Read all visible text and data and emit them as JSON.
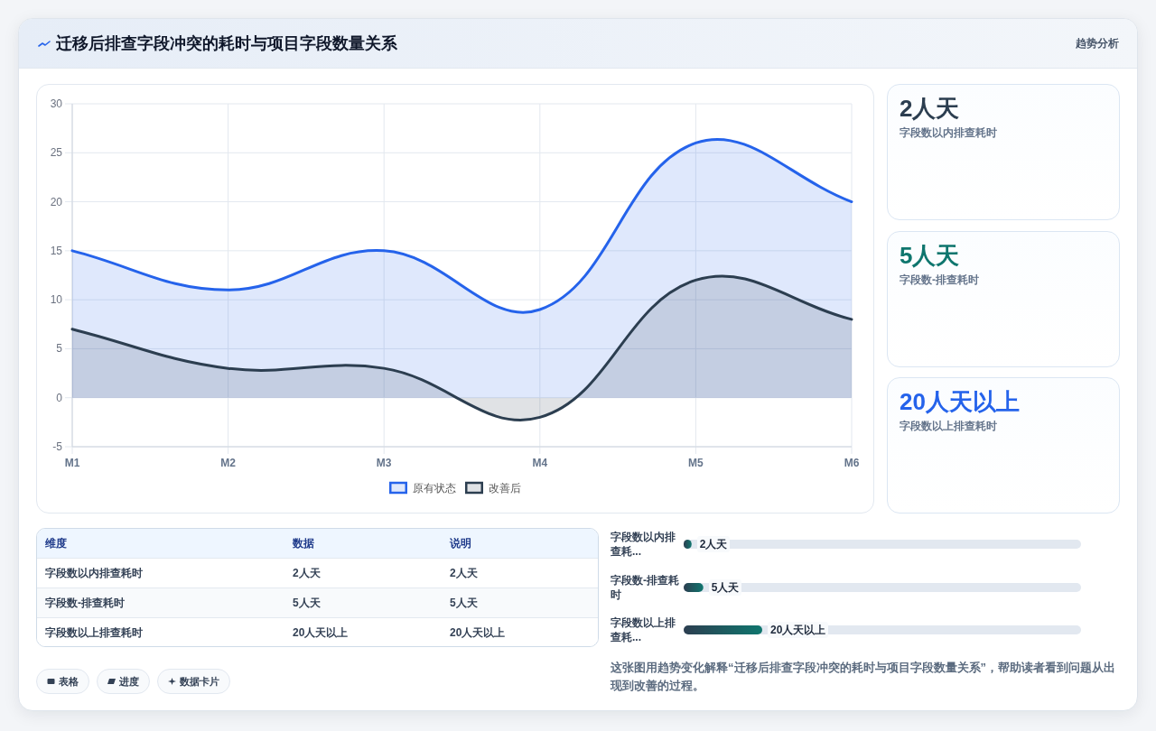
{
  "chart_data": [
    {
      "type": "area",
      "title": "迁移后排查字段冲突的耗时与项目字段数量关系",
      "categories": [
        "M1",
        "M2",
        "M3",
        "M4",
        "M5",
        "M6"
      ],
      "series": [
        {
          "name": "原有状态",
          "color": "#2563eb",
          "values": [
            15,
            11,
            15,
            9,
            26,
            20
          ]
        },
        {
          "name": "改善后",
          "color": "#2c3e50",
          "values": [
            7,
            3,
            3,
            -2,
            12,
            8
          ]
        }
      ],
      "ylim": [
        -5,
        30
      ],
      "yticks": [
        -5,
        0,
        5,
        10,
        15,
        20,
        25,
        30
      ],
      "grid": true,
      "legend": "bottom"
    },
    {
      "type": "other",
      "title": "趋势分析",
      "annotations": [
        "2人天",
        "字段数以内排查耗时",
        "5人天",
        "字段数-排查耗时",
        "20人天以上",
        "字段数以上排查耗时"
      ],
      "colors": [
        "#2c3e50",
        "#0f766e",
        "#2563eb"
      ]
    },
    {
      "type": "other",
      "annotations": [
        "维度",
        "数据",
        "说明",
        "字段数以内排查耗时",
        "2人天",
        "2人天",
        "字段数-排查耗时",
        "5人天",
        "5人天",
        "字段数以上排查耗时",
        "20人天以上",
        "20人天以上"
      ]
    },
    {
      "type": "bar",
      "orientation": "horizontal",
      "categories": [
        "字段数以内排查耗...",
        "字段数-排查耗时",
        "字段数以上排查耗..."
      ],
      "values": [
        2,
        5,
        20
      ],
      "value_labels": [
        "2人天",
        "5人天",
        "20人天以上"
      ],
      "color": "#0f766e"
    },
    {
      "type": "other",
      "annotations": [
        "表格",
        "进度",
        "数据卡片"
      ]
    },
    {
      "type": "other",
      "annotations": [
        "这张图用趋势变化解释“迁移后排查字段冲突的耗时与项目字段数量关系”，帮助读者看到问题从出现到改善的过程。"
      ]
    }
  ]
}
